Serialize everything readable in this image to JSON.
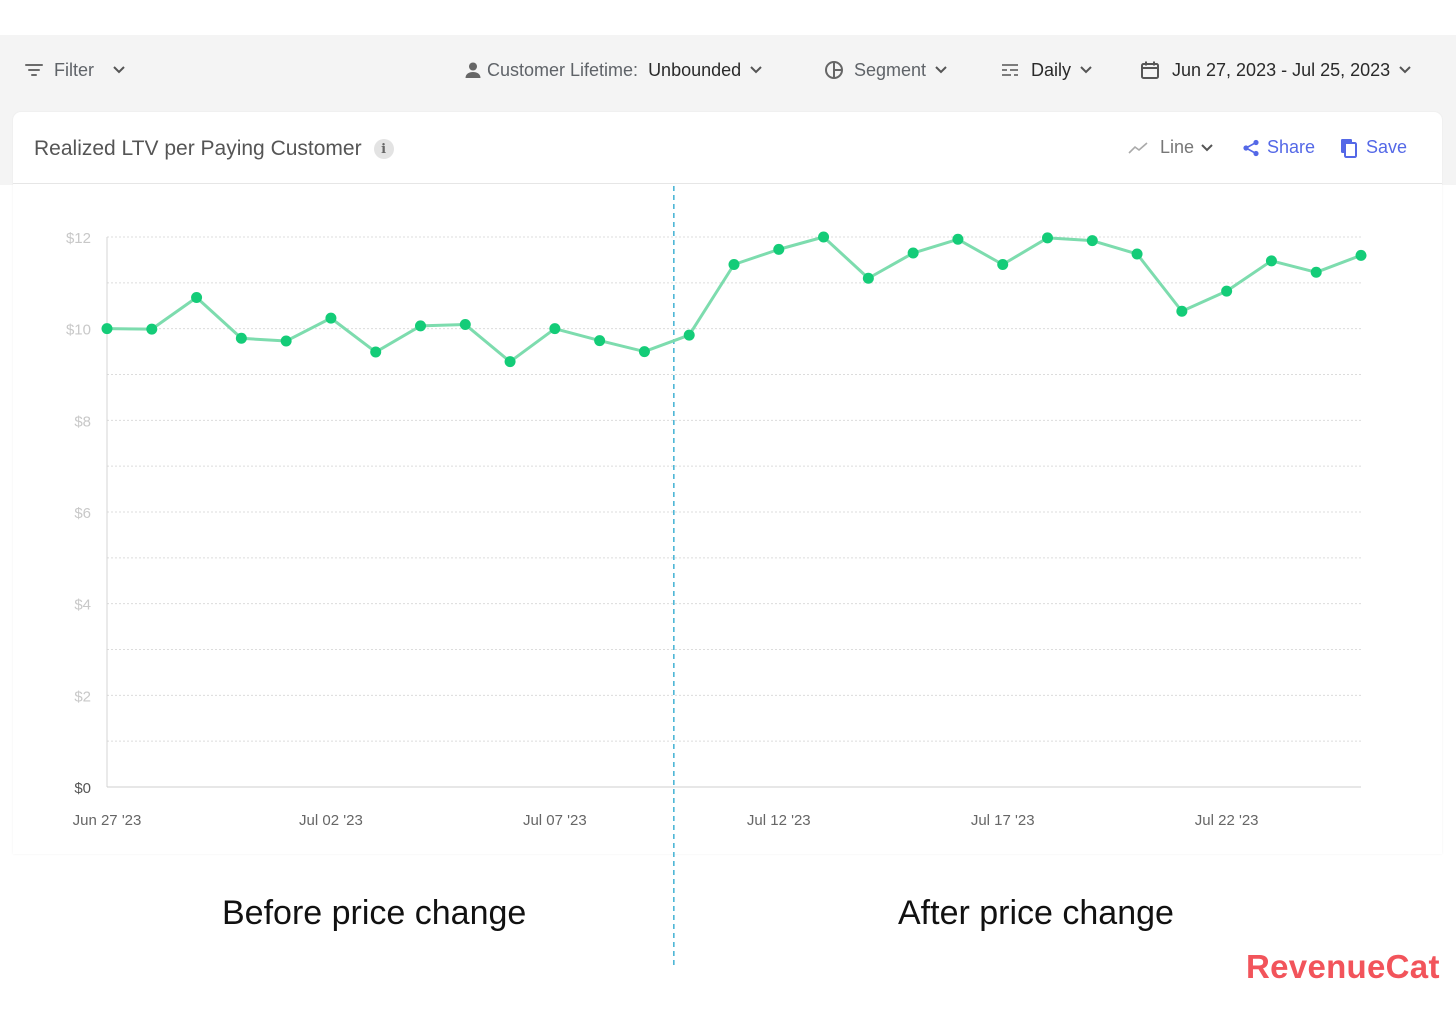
{
  "toolbar": {
    "filter_label": "Filter",
    "lifetime_label": "Customer Lifetime:",
    "lifetime_value": "Unbounded",
    "segment_label": "Segment",
    "resolution_label": "Daily",
    "date_range": "Jun 27, 2023 - Jul 25, 2023"
  },
  "card": {
    "title": "Realized LTV per Paying Customer",
    "info_icon": "i",
    "chart_type_label": "Line",
    "share_label": "Share",
    "save_label": "Save"
  },
  "annotations": {
    "before": "Before price change",
    "after": "After price change"
  },
  "logo": "RevenueCat",
  "colors": {
    "line": "#7ddcae",
    "point": "#14cc78",
    "marker": "#4db6d6",
    "accent": "#5468e7",
    "brand": "#f2545b"
  },
  "chart_data": {
    "type": "line",
    "x": [
      "Jun 27 '23",
      "Jun 28 '23",
      "Jun 29 '23",
      "Jun 30 '23",
      "Jul 01 '23",
      "Jul 02 '23",
      "Jul 03 '23",
      "Jul 04 '23",
      "Jul 05 '23",
      "Jul 06 '23",
      "Jul 07 '23",
      "Jul 08 '23",
      "Jul 09 '23",
      "Jul 10 '23",
      "Jul 11 '23",
      "Jul 12 '23",
      "Jul 13 '23",
      "Jul 14 '23",
      "Jul 15 '23",
      "Jul 16 '23",
      "Jul 17 '23",
      "Jul 18 '23",
      "Jul 19 '23",
      "Jul 20 '23",
      "Jul 21 '23",
      "Jul 22 '23",
      "Jul 23 '23",
      "Jul 24 '23",
      "Jul 25 '23"
    ],
    "series": [
      {
        "values": [
          10.0,
          9.99,
          10.68,
          9.79,
          9.73,
          10.23,
          9.49,
          10.06,
          10.09,
          9.28,
          10.0,
          9.74,
          9.5,
          9.86,
          11.4,
          11.73,
          12.0,
          11.1,
          11.65,
          11.95,
          11.4,
          11.98,
          11.92,
          11.63,
          10.38,
          10.82,
          11.48,
          11.23,
          11.6
        ]
      }
    ],
    "xticks": [
      "Jun 27 '23",
      "Jul 02 '23",
      "Jul 07 '23",
      "Jul 12 '23",
      "Jul 17 '23",
      "Jul 22 '23"
    ],
    "yticks": [
      0,
      2,
      4,
      6,
      8,
      10,
      12
    ],
    "ytick_labels": [
      "$0",
      "$2",
      "$4",
      "$6",
      "$8",
      "$10",
      "$12"
    ],
    "ylim": [
      0,
      12
    ],
    "grid": true,
    "marker_between": [
      "Jul 09 '23",
      "Jul 10 '23"
    ]
  }
}
